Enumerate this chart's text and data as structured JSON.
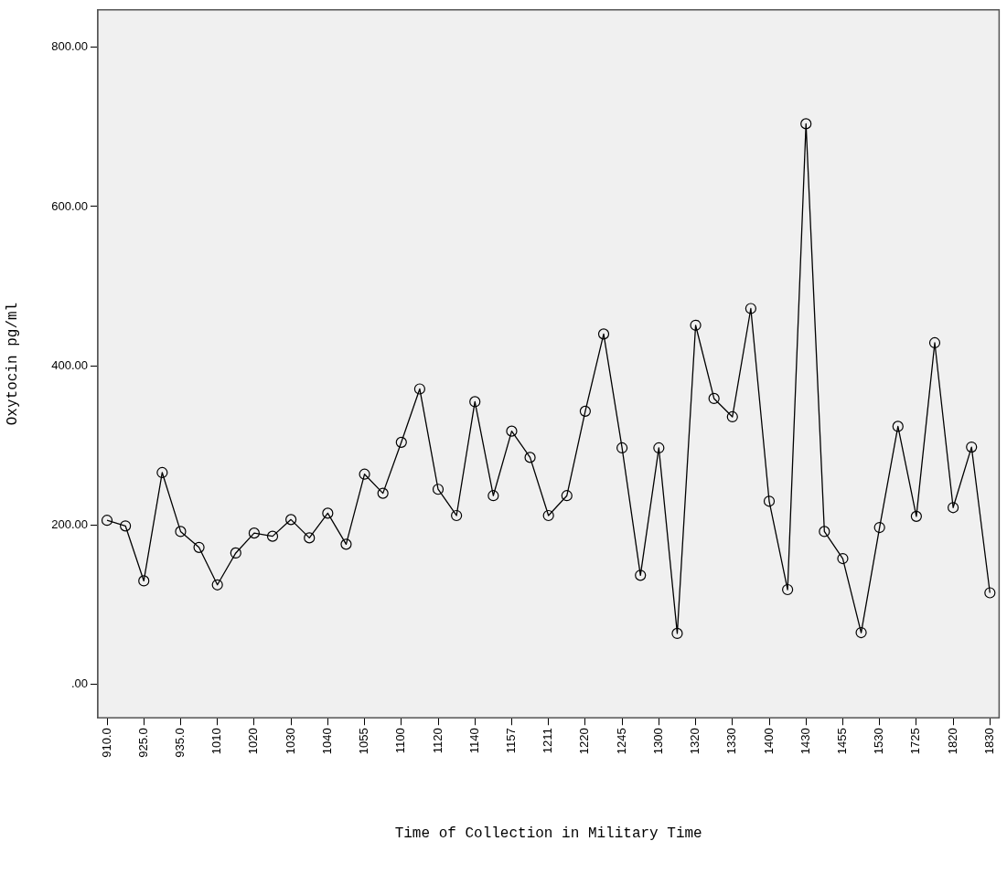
{
  "chart_data": {
    "type": "line",
    "xlabel": "Time of Collection in Military Time",
    "ylabel": "Oxytocin pg/ml",
    "categories": [
      "910.0",
      null,
      "925.0",
      null,
      "935.0",
      null,
      "1010",
      null,
      "1020",
      null,
      "1030",
      null,
      "1040",
      null,
      "1055",
      null,
      "1100",
      null,
      "1120",
      null,
      "1140",
      null,
      "1157",
      null,
      "1211",
      null,
      "1220",
      null,
      "1245",
      null,
      "1300",
      null,
      "1320",
      null,
      "1330",
      null,
      "1400",
      null,
      "1430",
      null,
      "1455",
      null,
      "1530",
      null,
      "1725",
      null,
      "1820",
      null,
      "1830"
    ],
    "series": [
      {
        "color": "#000000",
        "values": [
          206,
          199,
          130,
          266,
          192,
          172,
          125,
          165,
          190,
          186,
          207,
          184,
          215,
          176,
          264,
          240,
          304,
          371,
          245,
          212,
          355,
          237,
          318,
          285,
          212,
          237,
          343,
          440,
          297,
          137,
          297,
          64,
          451,
          359,
          336,
          472,
          230,
          119,
          704,
          192,
          158,
          65,
          197,
          324,
          211,
          429,
          222,
          298,
          115
        ]
      }
    ],
    "ylim": [
      -42,
      847
    ],
    "yticks": [
      {
        "value": 0,
        "label": ".00"
      },
      {
        "value": 200,
        "label": "200.00"
      },
      {
        "value": 400,
        "label": "400.00"
      },
      {
        "value": 600,
        "label": "600.00"
      },
      {
        "value": 800,
        "label": "800.00"
      }
    ],
    "grid": false,
    "legend": false,
    "marker": "circle",
    "line_style": "solid"
  }
}
